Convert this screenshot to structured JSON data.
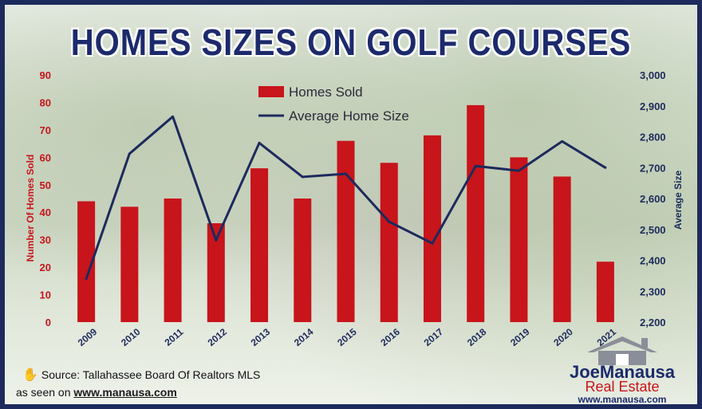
{
  "title": "HOMES SIZES ON GOLF COURSES",
  "source_text": "Source: Tallahassee Board Of Realtors MLS",
  "seen_on_prefix": "as seen on",
  "seen_on_link": "www.manausa.com",
  "logo": {
    "joe": "Joe",
    "manausa": "Manausa",
    "real_estate": "Real Estate",
    "url": "www.manausa.com"
  },
  "colors": {
    "bar": "#c8141b",
    "line": "#1c2a5c",
    "left_axis": "#c8141b",
    "right_axis": "#1c2a5c",
    "frame": "#1c2a5c"
  },
  "chart_data": {
    "type": "bar",
    "title": "HOMES SIZES ON GOLF COURSES",
    "categories": [
      "2009",
      "2010",
      "2011",
      "2012",
      "2013",
      "2014",
      "2015",
      "2016",
      "2017",
      "2018",
      "2019",
      "2020",
      "2021"
    ],
    "series": [
      {
        "name": "Homes Sold",
        "type": "bar",
        "axis": "left",
        "values": [
          44,
          42,
          45,
          36,
          56,
          45,
          66,
          58,
          68,
          79,
          60,
          53,
          22
        ]
      },
      {
        "name": "Average Home Size",
        "type": "line",
        "axis": "right",
        "values": [
          2340,
          2745,
          2865,
          2465,
          2780,
          2670,
          2680,
          2525,
          2455,
          2705,
          2690,
          2785,
          2700
        ]
      }
    ],
    "ylabel": "Number Of Homes Sold",
    "y2label": "Average Size",
    "ylim": [
      0,
      90
    ],
    "y2lim": [
      2200,
      3000
    ],
    "yticks": [
      "0",
      "10",
      "20",
      "30",
      "40",
      "50",
      "60",
      "70",
      "80",
      "90"
    ],
    "y2ticks": [
      "2,200",
      "2,300",
      "2,400",
      "2,500",
      "2,600",
      "2,700",
      "2,800",
      "2,900",
      "3,000"
    ],
    "legend_position": "top-center"
  }
}
